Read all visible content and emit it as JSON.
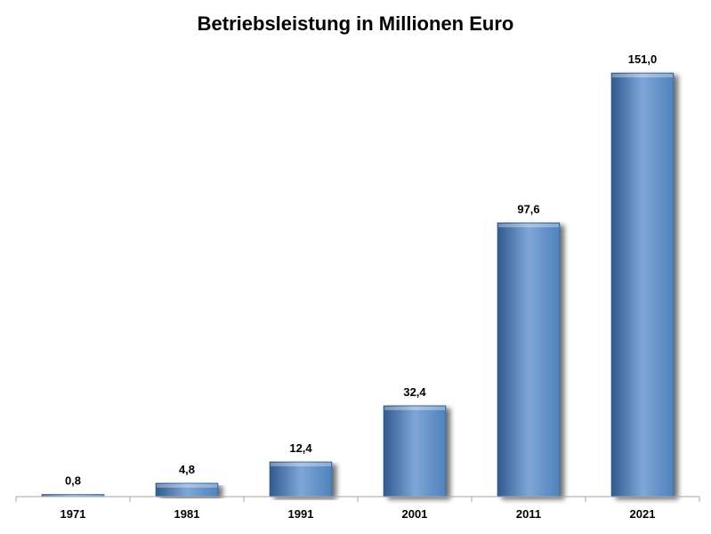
{
  "chart_data": {
    "type": "bar",
    "title": "Betriebsleistung in Millionen Euro",
    "categories": [
      "1971",
      "1981",
      "1991",
      "2001",
      "2011",
      "2021"
    ],
    "values": [
      0.8,
      4.8,
      12.4,
      32.4,
      97.6,
      151.0
    ],
    "value_labels": [
      "0,8",
      "4,8",
      "12,4",
      "32,4",
      "97,6",
      "151,0"
    ],
    "xlabel": "",
    "ylabel": "",
    "ylim": [
      0,
      151.0
    ],
    "grid": false,
    "legend": "none",
    "colors": {
      "bar": "#4f81bd",
      "bar_light": "#7fa6d6",
      "bar_dark": "#2f5a8f",
      "axis": "#a6a6a6"
    }
  }
}
